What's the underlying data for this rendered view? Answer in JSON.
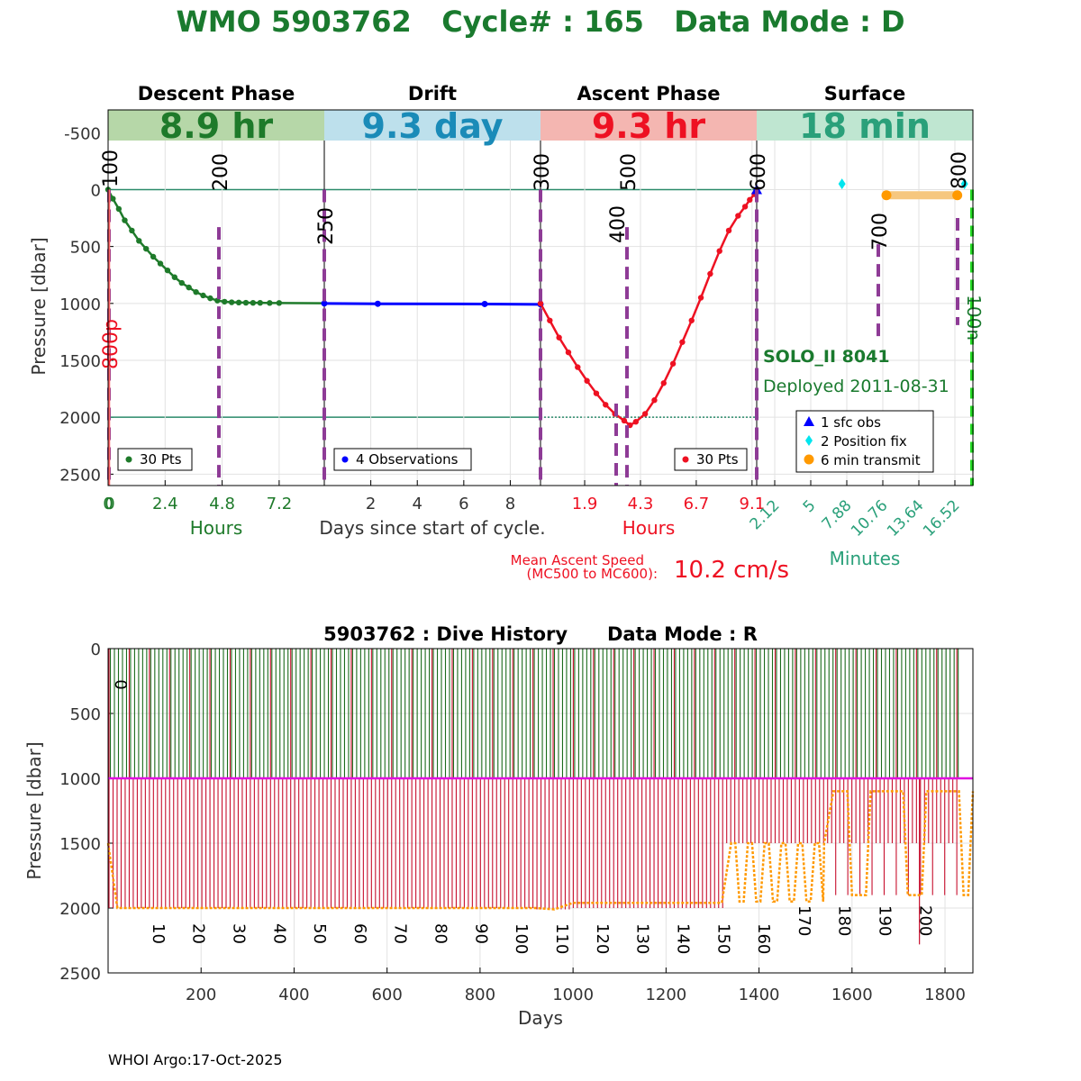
{
  "page_title": "WMO 5903762   Cycle# : 165   Data Mode : D",
  "colors": {
    "title": "#1a7a2e",
    "descent": "#1e7a2a",
    "drift": "#0000ff",
    "ascent": "#ee1122",
    "surface_teal": "#2aa07a",
    "mc_marker": "#8e3b96",
    "transmit": "#ff9900",
    "position_fix": "#00e5ee",
    "sfc_obs": "#0000ff",
    "grid": "#e2e2e2",
    "history_green": "#1b6b1b",
    "history_red": "#c8102e",
    "history_magenta": "#e011e0"
  },
  "chart_data": [
    {
      "type": "line",
      "title": "",
      "ylabel": "Pressure [dbar]",
      "ylim": [
        2600,
        -700
      ],
      "yticks": [
        -500,
        0,
        500,
        1000,
        1500,
        2000,
        2500
      ],
      "grid": true,
      "shared_xlabel": "Days since start of cycle.",
      "phases": [
        {
          "name": "Descent Phase",
          "duration": "8.9 hr",
          "band_color": "#b6d7a8",
          "text_color": "#1e7a2a",
          "xlabel": "Hours",
          "xticks": [
            "0",
            "2.4",
            "4.8",
            "7.2"
          ],
          "xlim": [
            0,
            9.1
          ],
          "legend": "30 Pts",
          "series": {
            "x": [
              0,
              0.2,
              0.45,
              0.7,
              1.0,
              1.3,
              1.6,
              1.9,
              2.2,
              2.5,
              2.8,
              3.1,
              3.4,
              3.7,
              4.0,
              4.3,
              4.6,
              4.9,
              5.2,
              5.5,
              5.8,
              6.1,
              6.4,
              6.8,
              7.2
            ],
            "y": [
              0,
              80,
              170,
              270,
              360,
              450,
              520,
              590,
              650,
              710,
              770,
              820,
              860,
              900,
              930,
              955,
              975,
              985,
              990,
              992,
              994,
              995,
              995,
              996,
              996
            ]
          }
        },
        {
          "name": "Drift",
          "duration": "9.3 day",
          "band_color": "#bde0ec",
          "text_color": "#1a8bb8",
          "xlabel": "",
          "xticks": [
            "2",
            "4",
            "6",
            "8"
          ],
          "xlim": [
            0,
            9.3
          ],
          "legend": "4 Observations",
          "series": {
            "x": [
              0,
              2.3,
              6.9,
              9.3
            ],
            "y": [
              1000,
              1003,
              1005,
              1008
            ]
          }
        },
        {
          "name": "Ascent Phase",
          "duration": "9.3 hr",
          "band_color": "#f4b6b1",
          "text_color": "#ee1122",
          "xlabel": "Hours",
          "xticks": [
            "1.9",
            "4.3",
            "6.7",
            "9.1"
          ],
          "xlim": [
            0,
            9.3
          ],
          "legend": "30 Pts",
          "series": {
            "x": [
              0,
              0.4,
              0.8,
              1.2,
              1.6,
              2.0,
              2.4,
              2.8,
              3.2,
              3.6,
              3.85,
              4.1,
              4.5,
              4.9,
              5.3,
              5.7,
              6.1,
              6.5,
              6.9,
              7.3,
              7.7,
              8.1,
              8.5,
              8.8,
              9.0,
              9.2
            ],
            "y": [
              1000,
              1150,
              1300,
              1430,
              1560,
              1680,
              1790,
              1890,
              1970,
              2030,
              2070,
              2040,
              1970,
              1850,
              1700,
              1530,
              1340,
              1150,
              950,
              740,
              540,
              360,
              230,
              150,
              90,
              40
            ]
          }
        },
        {
          "name": "Surface",
          "duration": "18 min",
          "band_color": "#bfe6d1",
          "text_color": "#2aa07a",
          "xlabel": "Minutes",
          "xticks": [
            "2.12",
            "5",
            "7.88",
            "10.76",
            "13.64",
            "16.52"
          ],
          "xlim": [
            0,
            18
          ],
          "legend_items": [
            {
              "label": "1 sfc obs",
              "marker": "triangle",
              "color": "#0000ff"
            },
            {
              "label": "2 Position fix",
              "marker": "diamond",
              "color": "#00e5ee"
            },
            {
              "label": "6 min transmit",
              "marker": "circle",
              "color": "#ff9900"
            }
          ],
          "position_fix": [
            {
              "x": 7.1,
              "y": -50
            },
            {
              "x": 17.3,
              "y": -50
            }
          ],
          "transmit": {
            "x0": 10.8,
            "x1": 16.7,
            "y": 50
          }
        }
      ],
      "mc_labels": [
        "100",
        "200",
        "250",
        "300",
        "400",
        "500",
        "600",
        "700",
        "800"
      ],
      "side_labels": [
        "800p",
        "100n"
      ],
      "float_info": {
        "model": "SOLO_II 8041",
        "deployed": "Deployed 2011-08-31"
      },
      "ascent_speed": {
        "label_line1": "Mean Ascent Speed",
        "label_line2": "(MC500 to MC600):",
        "value": "10.2 cm/s"
      }
    },
    {
      "type": "line",
      "title": "5903762 : Dive History      Data Mode : R",
      "xlabel": "Days",
      "ylabel": "Pressure [dbar]",
      "xlim": [
        0,
        1860
      ],
      "ylim": [
        2500,
        0
      ],
      "xticks": [
        200,
        400,
        600,
        800,
        1000,
        1200,
        1400,
        1600,
        1800
      ],
      "yticks": [
        0,
        500,
        1000,
        1500,
        2000,
        2500
      ],
      "grid": true,
      "cycle_labels": [
        "0",
        "10",
        "20",
        "30",
        "40",
        "50",
        "60",
        "70",
        "80",
        "90",
        "100",
        "110",
        "120",
        "130",
        "140",
        "150",
        "160",
        "170",
        "180",
        "190",
        "200"
      ],
      "series": [
        {
          "name": "",
          "color": "#1b6b1b",
          "note_values": "surfacing to 0 dbar each cycle"
        },
        {
          "name": "",
          "color": "#c8102e",
          "profile_depth_start": 2000,
          "profile_depth_after_cycle_138": 1500
        },
        {
          "name": "",
          "color": "#e011e0",
          "parking_pressure": 1000
        },
        {
          "name": "",
          "color": "#f5a623",
          "max_pressure_trace": [
            [
              0,
              1500
            ],
            [
              20,
              2000
            ],
            [
              920,
              2000
            ],
            [
              960,
              2010
            ],
            [
              1000,
              1960
            ],
            [
              1320,
              1960
            ],
            [
              1340,
              1500
            ],
            [
              1540,
              1500
            ],
            [
              1560,
              1100
            ],
            [
              1860,
              1100
            ]
          ]
        }
      ]
    }
  ],
  "footer": "WHOI Argo:17-Oct-2025"
}
